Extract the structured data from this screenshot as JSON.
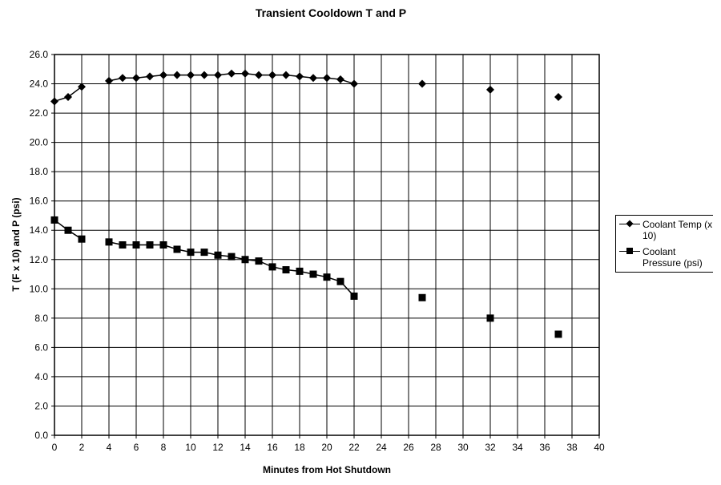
{
  "chart_data": {
    "type": "line",
    "title": "Transient Cooldown T and P",
    "xlabel": "Minutes from Hot Shutdown",
    "ylabel": "T (F x 10) and P (psi)",
    "xlim": [
      0,
      40
    ],
    "ylim": [
      0,
      26
    ],
    "xticks": [
      0,
      2,
      4,
      6,
      8,
      10,
      12,
      14,
      16,
      18,
      20,
      22,
      24,
      26,
      28,
      30,
      32,
      34,
      36,
      38,
      40
    ],
    "yticks": [
      "0.0",
      "2.0",
      "4.0",
      "6.0",
      "8.0",
      "10.0",
      "12.0",
      "14.0",
      "16.0",
      "18.0",
      "20.0",
      "22.0",
      "24.0",
      "26.0"
    ],
    "grid": true,
    "legend_position": "right",
    "series": [
      {
        "name": "Coolant Temp (x 10)",
        "marker": "diamond",
        "segments": [
          {
            "x": [
              0,
              1,
              2
            ],
            "y": [
              22.8,
              23.1,
              23.8
            ]
          },
          {
            "x": [
              4,
              5,
              6,
              7,
              8,
              9,
              10,
              11,
              12,
              13,
              14,
              15,
              16,
              17,
              18,
              19,
              20,
              21,
              22
            ],
            "y": [
              24.2,
              24.4,
              24.4,
              24.5,
              24.6,
              24.6,
              24.6,
              24.6,
              24.6,
              24.7,
              24.7,
              24.6,
              24.6,
              24.6,
              24.5,
              24.4,
              24.4,
              24.3,
              24.0
            ]
          },
          {
            "x": [
              27
            ],
            "y": [
              24.0
            ]
          },
          {
            "x": [
              32
            ],
            "y": [
              23.6
            ]
          },
          {
            "x": [
              37
            ],
            "y": [
              23.1
            ]
          }
        ]
      },
      {
        "name": "Coolant Pressure (psi)",
        "marker": "square",
        "segments": [
          {
            "x": [
              0,
              1,
              2
            ],
            "y": [
              14.7,
              14.0,
              13.4
            ]
          },
          {
            "x": [
              4,
              5,
              6,
              7,
              8,
              9,
              10,
              11,
              12,
              13,
              14,
              15,
              16,
              17,
              18,
              19,
              20,
              21,
              22
            ],
            "y": [
              13.2,
              13.0,
              13.0,
              13.0,
              13.0,
              12.7,
              12.5,
              12.5,
              12.3,
              12.2,
              12.0,
              11.9,
              11.5,
              11.3,
              11.2,
              11.0,
              10.8,
              10.5,
              9.5
            ]
          },
          {
            "x": [
              27
            ],
            "y": [
              9.4
            ]
          },
          {
            "x": [
              32
            ],
            "y": [
              8.0
            ]
          },
          {
            "x": [
              37
            ],
            "y": [
              6.9
            ]
          }
        ]
      }
    ]
  },
  "legend": {
    "items": [
      {
        "label": "Coolant Temp (x 10)"
      },
      {
        "label": "Coolant Pressure (psi)"
      }
    ]
  }
}
